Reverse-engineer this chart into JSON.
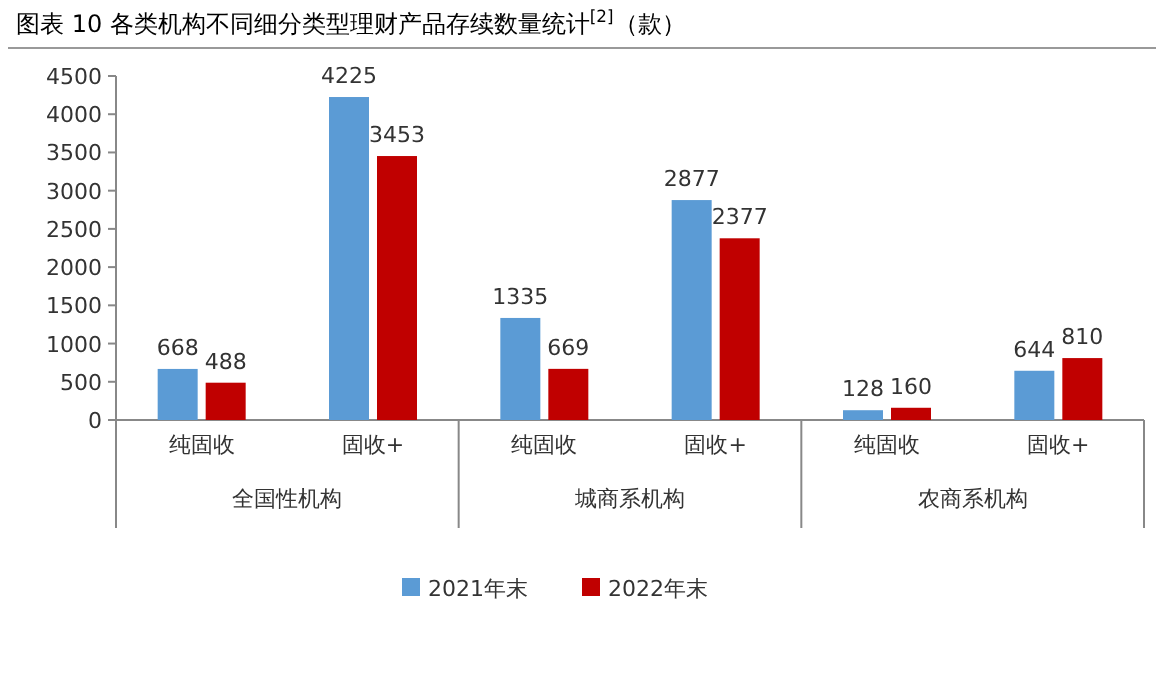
{
  "chart_data": {
    "type": "bar",
    "title": "图表 10 各类机构不同细分类型理财产品存续数量统计$^{[2]}$（款）",
    "categories": [
      "纯固收",
      "固收+",
      "纯固收",
      "固收+",
      "纯固收",
      "固收+"
    ],
    "series": [
      {
        "name": "2021年末",
        "color": "#5b9bd5",
        "values": [
          668,
          4225,
          1335,
          2877,
          128,
          644
        ]
      },
      {
        "name": "2022年末",
        "color": "#c00000",
        "values": [
          488,
          3453,
          669,
          2377,
          160,
          810
        ]
      }
    ],
    "annotations": [
      "全国性机构",
      "城商系机构",
      "农商系机构"
    ],
    "ylim": [
      0,
      4500
    ],
    "yticks": [
      0,
      500,
      1000,
      1500,
      2000,
      2500,
      3000,
      3500,
      4000,
      4500
    ],
    "data_labels": true,
    "legend": "bottom",
    "grid": false
  }
}
